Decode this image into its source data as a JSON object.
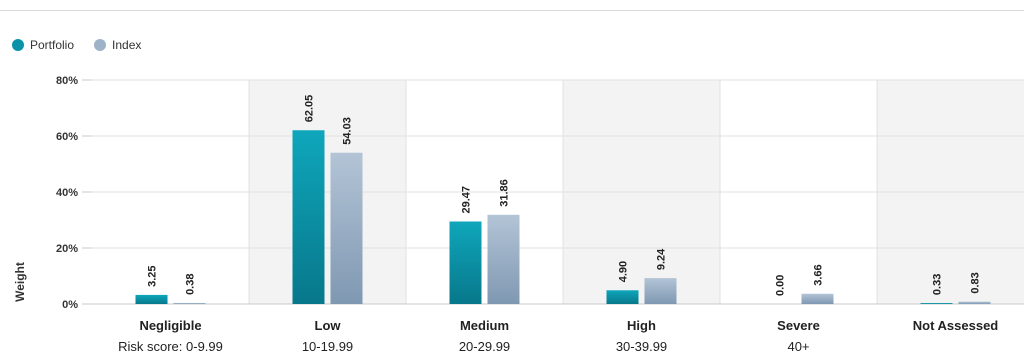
{
  "legend": {
    "items": [
      {
        "label": "Portfolio",
        "color": "#0a93a8"
      },
      {
        "label": "Index",
        "color": "#9fb3c8"
      }
    ]
  },
  "chart_data": {
    "type": "bar",
    "title": "",
    "xlabel": "",
    "ylabel": "Weight",
    "ylim": [
      0,
      80
    ],
    "yticks": [
      0,
      20,
      40,
      60,
      80
    ],
    "ytick_labels": [
      "0%",
      "20%",
      "40%",
      "60%",
      "80%"
    ],
    "categories": [
      "Negligible",
      "Low",
      "Medium",
      "High",
      "Severe",
      "Not Assessed"
    ],
    "category_sublabels": [
      "Risk score: 0-9.99",
      "10-19.99",
      "20-29.99",
      "30-39.99",
      "40+",
      ""
    ],
    "series": [
      {
        "name": "Portfolio",
        "values": [
          3.25,
          62.05,
          29.47,
          4.9,
          0.0,
          0.33
        ],
        "labels": [
          "3.25",
          "62.05",
          "29.47",
          "4.90",
          "0.00",
          "0.33"
        ]
      },
      {
        "name": "Index",
        "values": [
          0.38,
          54.03,
          31.86,
          9.24,
          3.66,
          0.83
        ],
        "labels": [
          "0.38",
          "54.03",
          "31.86",
          "9.24",
          "3.66",
          "0.83"
        ]
      }
    ],
    "legend_position": "top-left",
    "grid": true
  }
}
